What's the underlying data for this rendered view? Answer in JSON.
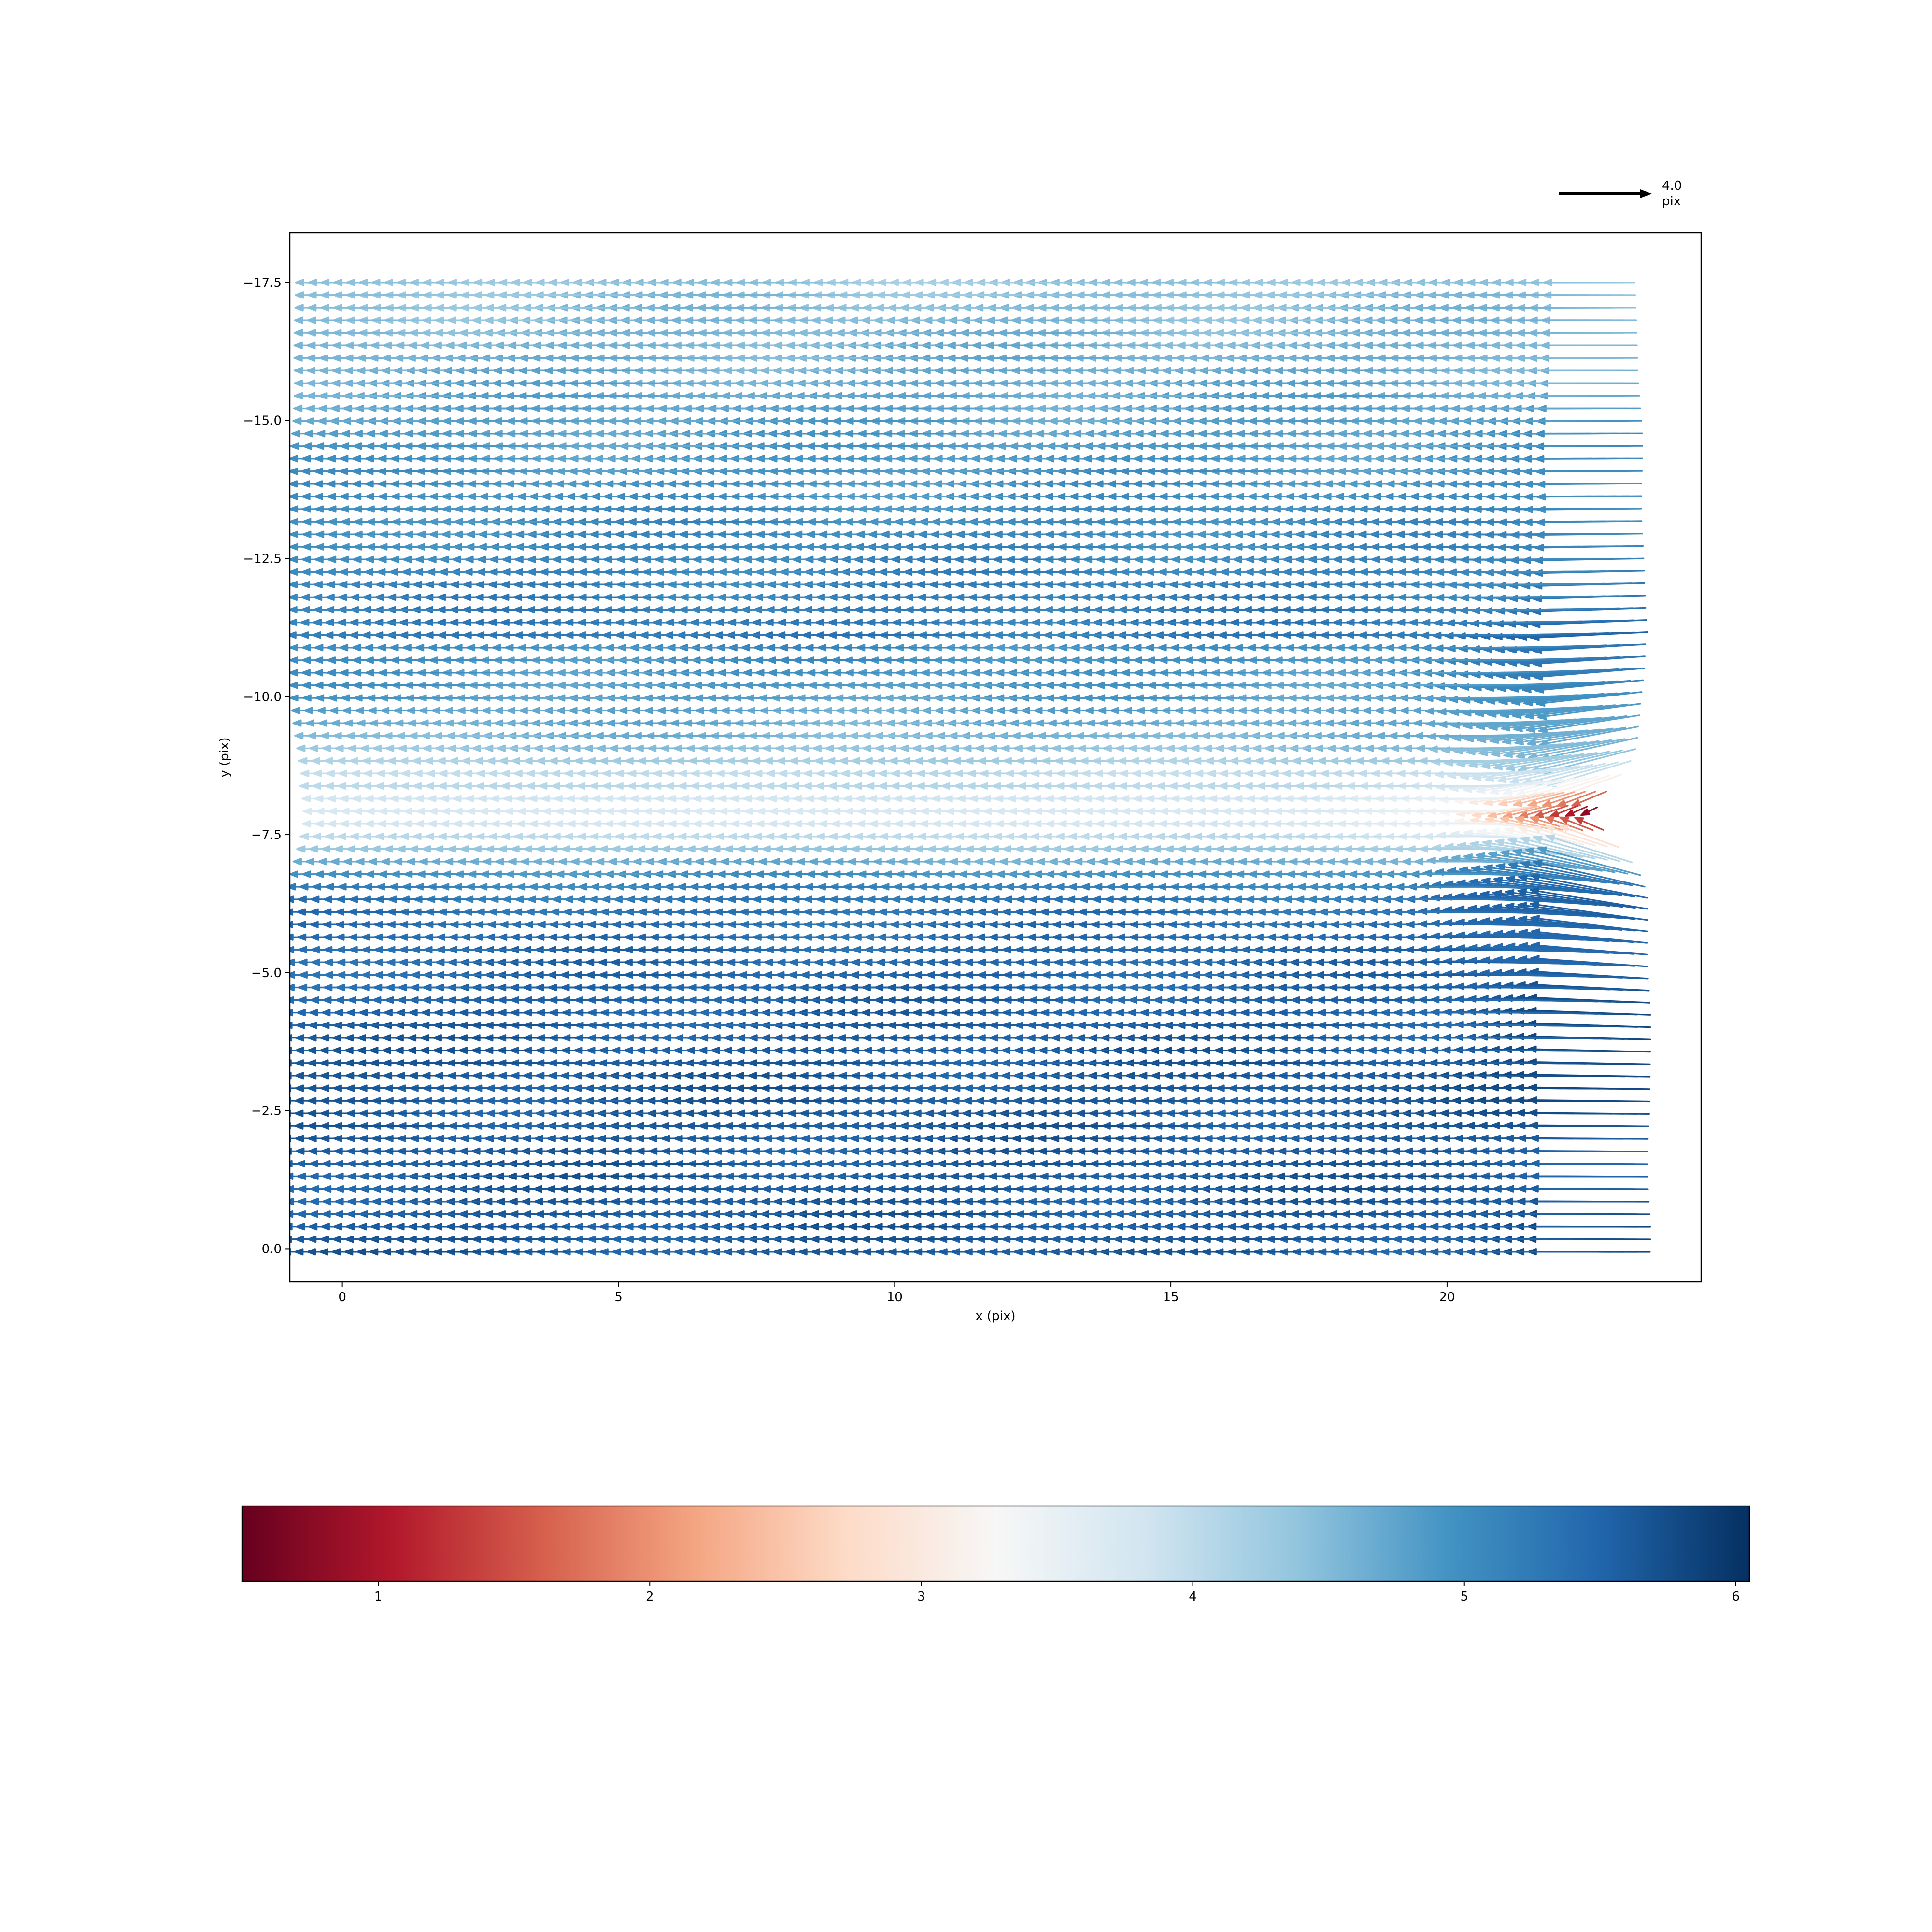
{
  "chart_data": {
    "type": "quiver",
    "title": "",
    "xlabel": "x (pix)",
    "ylabel": "y (pix)",
    "xlim": [
      -0.95,
      24.6
    ],
    "ylim": [
      0.6,
      -18.4
    ],
    "y_axis_inverted": true,
    "xticks": [
      0,
      5,
      10,
      15,
      20
    ],
    "xtick_labels": [
      "0",
      "5",
      "10",
      "15",
      "20"
    ],
    "yticks": [
      -17.5,
      -15.0,
      -12.5,
      -10.0,
      -7.5,
      -5.0,
      -2.5,
      0.0
    ],
    "ytick_labels": [
      "−17.5",
      "−15.0",
      "−12.5",
      "−10.0",
      "−7.5",
      "−5.0",
      "−2.5",
      "0.0"
    ],
    "grid": false,
    "field": {
      "x_start": 0,
      "x_end": 22.5,
      "x_step": 0.228,
      "y_start": -17.5,
      "y_end": 0.0,
      "y_step": 0.228,
      "vector_direction": "leftward (-x)",
      "magnitude_range": [
        0.55,
        6.1
      ],
      "low_magnitude_region": {
        "y_center": -7.9,
        "x_from": 20.5,
        "min_magnitude": 0.6
      }
    },
    "quiver_key": {
      "length": 4.0,
      "label_value": "4.0",
      "label_unit": "pix",
      "position": "top-right"
    },
    "colorbar": {
      "orientation": "horizontal",
      "colormap": "RdBu",
      "range": [
        0.5,
        6.05
      ],
      "ticks": [
        1,
        2,
        3,
        4,
        5,
        6
      ],
      "tick_labels": [
        "1",
        "2",
        "3",
        "4",
        "5",
        "6"
      ]
    }
  },
  "colors": {
    "cmap_stops": [
      "#67001f",
      "#b2182b",
      "#d6604d",
      "#f4a582",
      "#fddbc7",
      "#f7f7f7",
      "#d1e5f0",
      "#92c5de",
      "#4393c3",
      "#2166ac",
      "#053061"
    ],
    "axes": "#000000",
    "key_arrow": "#000000"
  }
}
